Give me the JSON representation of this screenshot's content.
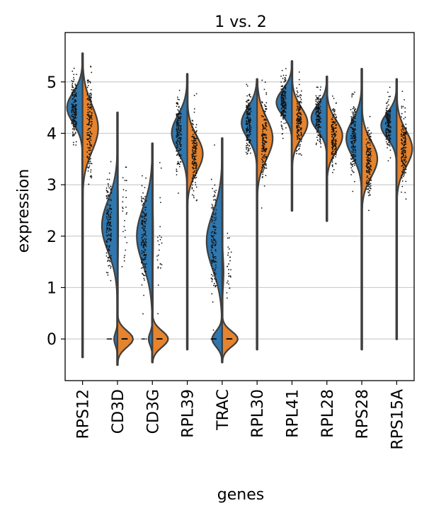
{
  "chart_data": {
    "type": "violin",
    "title": "1 vs. 2",
    "xlabel": "genes",
    "ylabel": "expression",
    "ylim": [
      -0.81,
      5.96
    ],
    "yticks": [
      0,
      1,
      2,
      3,
      4,
      5
    ],
    "grid": "horizontal",
    "categories": [
      "RPS12",
      "CD3D",
      "CD3G",
      "RPL39",
      "TRAC",
      "RPL30",
      "RPL41",
      "RPL28",
      "RPS28",
      "RPS15A"
    ],
    "series": [
      {
        "name": "1",
        "color": "#2f77ae",
        "side": "left",
        "distributions": [
          {
            "components": [
              [
                4.5,
                0.3,
                1
              ]
            ],
            "range": [
              -0.35,
              5.55
            ]
          },
          {
            "components": [
              [
                2.2,
                0.5,
                0.95
              ],
              [
                0,
                0.12,
                0.05
              ]
            ],
            "range": [
              -0.5,
              4.4
            ]
          },
          {
            "components": [
              [
                2.0,
                0.55,
                0.95
              ],
              [
                0,
                0.12,
                0.05
              ]
            ],
            "range": [
              -0.45,
              3.8
            ]
          },
          {
            "components": [
              [
                4.0,
                0.35,
                1
              ]
            ],
            "range": [
              -0.2,
              5.15
            ]
          },
          {
            "components": [
              [
                1.9,
                0.55,
                0.85
              ],
              [
                0,
                0.15,
                0.15
              ]
            ],
            "range": [
              -0.45,
              3.9
            ]
          },
          {
            "components": [
              [
                4.2,
                0.3,
                1
              ]
            ],
            "range": [
              -0.2,
              5.05
            ]
          },
          {
            "components": [
              [
                4.6,
                0.25,
                1
              ]
            ],
            "range": [
              2.5,
              5.4
            ]
          },
          {
            "components": [
              [
                4.3,
                0.25,
                1
              ]
            ],
            "range": [
              2.3,
              5.1
            ]
          },
          {
            "components": [
              [
                3.9,
                0.35,
                1
              ]
            ],
            "range": [
              -0.2,
              5.25
            ]
          },
          {
            "components": [
              [
                4.15,
                0.25,
                1
              ]
            ],
            "range": [
              0.0,
              5.05
            ]
          }
        ]
      },
      {
        "name": "2",
        "color": "#e5832e",
        "side": "right",
        "distributions": [
          {
            "components": [
              [
                4.1,
                0.45,
                1
              ]
            ],
            "range": [
              -0.35,
              5.55
            ]
          },
          {
            "components": [
              [
                0,
                0.16,
                0.85
              ],
              [
                2.2,
                0.6,
                0.15
              ]
            ],
            "range": [
              -0.5,
              4.4
            ]
          },
          {
            "components": [
              [
                0,
                0.16,
                0.85
              ],
              [
                2.0,
                0.6,
                0.15
              ]
            ],
            "range": [
              -0.45,
              3.8
            ]
          },
          {
            "components": [
              [
                3.6,
                0.35,
                1
              ]
            ],
            "range": [
              -0.2,
              5.15
            ]
          },
          {
            "components": [
              [
                0,
                0.15,
                0.85
              ],
              [
                1.3,
                0.3,
                0.15
              ]
            ],
            "range": [
              -0.45,
              3.9
            ]
          },
          {
            "components": [
              [
                3.9,
                0.4,
                1
              ]
            ],
            "range": [
              -0.2,
              5.05
            ]
          },
          {
            "components": [
              [
                4.2,
                0.3,
                1
              ]
            ],
            "range": [
              2.5,
              5.4
            ]
          },
          {
            "components": [
              [
                3.95,
                0.3,
                1
              ]
            ],
            "range": [
              2.3,
              5.1
            ]
          },
          {
            "components": [
              [
                3.5,
                0.35,
                1
              ]
            ],
            "range": [
              -0.2,
              5.25
            ]
          },
          {
            "components": [
              [
                3.7,
                0.35,
                1
              ]
            ],
            "range": [
              0.0,
              5.05
            ]
          }
        ]
      }
    ]
  }
}
